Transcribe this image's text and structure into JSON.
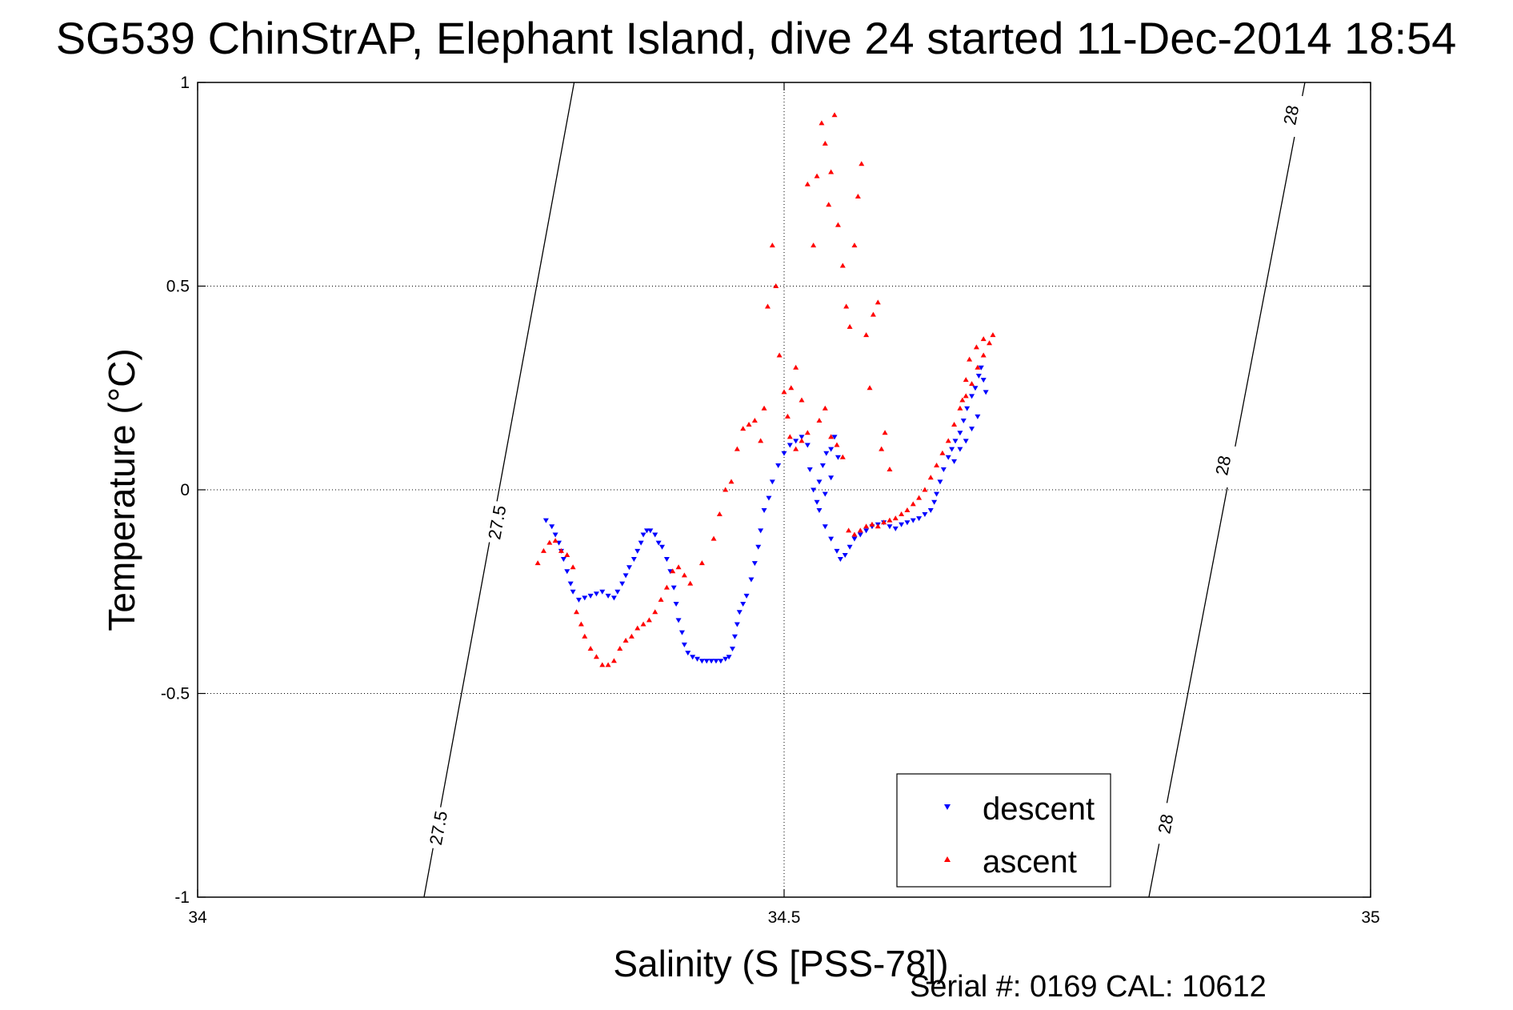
{
  "chart_data": {
    "type": "scatter",
    "title": "SG539 ChinStrAP, Elephant Island, dive 24 started 11-Dec-2014 18:54",
    "xlabel": "Salinity (S [PSS-78])",
    "ylabel": "Temperature (°C)",
    "xlim": [
      34,
      35
    ],
    "ylim": [
      -1,
      1
    ],
    "x_ticks": [
      "34",
      "34.5",
      "35"
    ],
    "x_tick_values": [
      34,
      34.5,
      35
    ],
    "y_ticks": [
      "1",
      "0.5",
      "0",
      "-0.5",
      "-1"
    ],
    "y_tick_values": [
      1,
      0.5,
      0,
      -0.5,
      -1
    ],
    "grid": true,
    "legend_position": "bottom-right",
    "footer": "Serial #: 0169 CAL: 10612",
    "contours": [
      {
        "label": "27.5",
        "points": [
          [
            34.193,
            -1.0
          ],
          [
            34.321,
            1.0
          ]
        ],
        "label_positions": [
          [
            34.205,
            -0.83
          ],
          [
            34.255,
            -0.08
          ]
        ]
      },
      {
        "label": "28",
        "points": [
          [
            34.811,
            -1.0
          ],
          [
            34.944,
            1.0
          ]
        ],
        "label_positions": [
          [
            34.825,
            -0.82
          ],
          [
            34.874,
            0.06
          ],
          [
            34.932,
            0.92
          ]
        ]
      }
    ],
    "series": [
      {
        "name": "descent",
        "color": "#0000ff",
        "marker": "triangle-down",
        "points": [
          [
            34.297,
            -0.075
          ],
          [
            34.302,
            -0.09
          ],
          [
            34.305,
            -0.11
          ],
          [
            34.308,
            -0.13
          ],
          [
            34.31,
            -0.15
          ],
          [
            34.312,
            -0.17
          ],
          [
            34.315,
            -0.2
          ],
          [
            34.318,
            -0.23
          ],
          [
            34.32,
            -0.25
          ],
          [
            34.325,
            -0.27
          ],
          [
            34.33,
            -0.265
          ],
          [
            34.335,
            -0.26
          ],
          [
            34.34,
            -0.255
          ],
          [
            34.345,
            -0.25
          ],
          [
            34.35,
            -0.26
          ],
          [
            34.355,
            -0.265
          ],
          [
            34.358,
            -0.25
          ],
          [
            34.362,
            -0.23
          ],
          [
            34.365,
            -0.21
          ],
          [
            34.368,
            -0.19
          ],
          [
            34.372,
            -0.17
          ],
          [
            34.375,
            -0.15
          ],
          [
            34.378,
            -0.13
          ],
          [
            34.38,
            -0.11
          ],
          [
            34.383,
            -0.1
          ],
          [
            34.386,
            -0.1
          ],
          [
            34.39,
            -0.11
          ],
          [
            34.393,
            -0.13
          ],
          [
            34.396,
            -0.14
          ],
          [
            34.4,
            -0.17
          ],
          [
            34.403,
            -0.2
          ],
          [
            34.406,
            -0.24
          ],
          [
            34.408,
            -0.28
          ],
          [
            34.41,
            -0.32
          ],
          [
            34.413,
            -0.35
          ],
          [
            34.415,
            -0.38
          ],
          [
            34.418,
            -0.4
          ],
          [
            34.422,
            -0.41
          ],
          [
            34.426,
            -0.415
          ],
          [
            34.43,
            -0.42
          ],
          [
            34.434,
            -0.42
          ],
          [
            34.438,
            -0.42
          ],
          [
            34.442,
            -0.42
          ],
          [
            34.446,
            -0.42
          ],
          [
            34.45,
            -0.415
          ],
          [
            34.453,
            -0.41
          ],
          [
            34.456,
            -0.39
          ],
          [
            34.458,
            -0.36
          ],
          [
            34.46,
            -0.33
          ],
          [
            34.462,
            -0.3
          ],
          [
            34.465,
            -0.28
          ],
          [
            34.468,
            -0.26
          ],
          [
            34.472,
            -0.22
          ],
          [
            34.475,
            -0.18
          ],
          [
            34.478,
            -0.14
          ],
          [
            34.48,
            -0.1
          ],
          [
            34.483,
            -0.05
          ],
          [
            34.487,
            -0.02
          ],
          [
            34.49,
            0.02
          ],
          [
            34.495,
            0.06
          ],
          [
            34.5,
            0.09
          ],
          [
            34.505,
            0.11
          ],
          [
            34.51,
            0.12
          ],
          [
            34.515,
            0.13
          ],
          [
            34.52,
            0.11
          ],
          [
            34.522,
            0.05
          ],
          [
            34.525,
            0.0
          ],
          [
            34.528,
            -0.03
          ],
          [
            34.53,
            0.02
          ],
          [
            34.533,
            0.06
          ],
          [
            34.536,
            0.09
          ],
          [
            34.54,
            0.1
          ],
          [
            34.543,
            0.13
          ],
          [
            34.546,
            0.08
          ],
          [
            34.54,
            0.03
          ],
          [
            34.535,
            -0.01
          ],
          [
            34.53,
            -0.05
          ],
          [
            34.535,
            -0.09
          ],
          [
            34.54,
            -0.12
          ],
          [
            34.545,
            -0.15
          ],
          [
            34.548,
            -0.17
          ],
          [
            34.552,
            -0.16
          ],
          [
            34.556,
            -0.14
          ],
          [
            34.56,
            -0.12
          ],
          [
            34.565,
            -0.11
          ],
          [
            34.57,
            -0.1
          ],
          [
            34.575,
            -0.09
          ],
          [
            34.58,
            -0.085
          ],
          [
            34.585,
            -0.08
          ],
          [
            34.59,
            -0.09
          ],
          [
            34.595,
            -0.095
          ],
          [
            34.6,
            -0.085
          ],
          [
            34.605,
            -0.08
          ],
          [
            34.61,
            -0.075
          ],
          [
            34.615,
            -0.07
          ],
          [
            34.62,
            -0.06
          ],
          [
            34.625,
            -0.05
          ],
          [
            34.628,
            -0.03
          ],
          [
            34.63,
            -0.01
          ],
          [
            34.633,
            0.02
          ],
          [
            34.636,
            0.05
          ],
          [
            34.64,
            0.08
          ],
          [
            34.643,
            0.1
          ],
          [
            34.646,
            0.12
          ],
          [
            34.65,
            0.14
          ],
          [
            34.653,
            0.17
          ],
          [
            34.656,
            0.2
          ],
          [
            34.66,
            0.23
          ],
          [
            34.663,
            0.25
          ],
          [
            34.666,
            0.28
          ],
          [
            34.668,
            0.3
          ],
          [
            34.67,
            0.27
          ],
          [
            34.672,
            0.24
          ],
          [
            34.665,
            0.18
          ],
          [
            34.66,
            0.15
          ],
          [
            34.655,
            0.12
          ],
          [
            34.65,
            0.1
          ],
          [
            34.645,
            0.07
          ]
        ]
      },
      {
        "name": "ascent",
        "color": "#ff0000",
        "marker": "triangle-up",
        "points": [
          [
            34.29,
            -0.18
          ],
          [
            34.295,
            -0.15
          ],
          [
            34.3,
            -0.13
          ],
          [
            34.305,
            -0.125
          ],
          [
            34.31,
            -0.15
          ],
          [
            34.315,
            -0.16
          ],
          [
            34.32,
            -0.19
          ],
          [
            34.323,
            -0.3
          ],
          [
            34.327,
            -0.33
          ],
          [
            34.33,
            -0.36
          ],
          [
            34.335,
            -0.39
          ],
          [
            34.34,
            -0.41
          ],
          [
            34.345,
            -0.43
          ],
          [
            34.35,
            -0.43
          ],
          [
            34.355,
            -0.42
          ],
          [
            34.36,
            -0.39
          ],
          [
            34.365,
            -0.37
          ],
          [
            34.37,
            -0.36
          ],
          [
            34.375,
            -0.34
          ],
          [
            34.38,
            -0.33
          ],
          [
            34.385,
            -0.32
          ],
          [
            34.39,
            -0.3
          ],
          [
            34.395,
            -0.27
          ],
          [
            34.4,
            -0.24
          ],
          [
            34.405,
            -0.2
          ],
          [
            34.41,
            -0.19
          ],
          [
            34.415,
            -0.21
          ],
          [
            34.42,
            -0.23
          ],
          [
            34.43,
            -0.18
          ],
          [
            34.44,
            -0.12
          ],
          [
            34.445,
            -0.06
          ],
          [
            34.45,
            0.0
          ],
          [
            34.455,
            0.02
          ],
          [
            34.46,
            0.1
          ],
          [
            34.465,
            0.15
          ],
          [
            34.47,
            0.16
          ],
          [
            34.475,
            0.17
          ],
          [
            34.48,
            0.12
          ],
          [
            34.483,
            0.2
          ],
          [
            34.486,
            0.45
          ],
          [
            34.49,
            0.6
          ],
          [
            34.493,
            0.5
          ],
          [
            34.496,
            0.33
          ],
          [
            34.5,
            0.24
          ],
          [
            34.503,
            0.18
          ],
          [
            34.506,
            0.25
          ],
          [
            34.51,
            0.3
          ],
          [
            34.515,
            0.22
          ],
          [
            34.52,
            0.75
          ],
          [
            34.525,
            0.6
          ],
          [
            34.528,
            0.77
          ],
          [
            34.532,
            0.9
          ],
          [
            34.535,
            0.85
          ],
          [
            34.538,
            0.7
          ],
          [
            34.54,
            0.78
          ],
          [
            34.543,
            0.92
          ],
          [
            34.546,
            0.65
          ],
          [
            34.55,
            0.55
          ],
          [
            34.553,
            0.45
          ],
          [
            34.556,
            0.4
          ],
          [
            34.56,
            0.6
          ],
          [
            34.563,
            0.72
          ],
          [
            34.566,
            0.8
          ],
          [
            34.57,
            0.38
          ],
          [
            34.573,
            0.25
          ],
          [
            34.576,
            0.43
          ],
          [
            34.58,
            0.46
          ],
          [
            34.583,
            0.1
          ],
          [
            34.586,
            0.14
          ],
          [
            34.59,
            0.05
          ],
          [
            34.52,
            0.14
          ],
          [
            34.515,
            0.12
          ],
          [
            34.51,
            0.1
          ],
          [
            34.505,
            0.13
          ],
          [
            34.53,
            0.17
          ],
          [
            34.535,
            0.2
          ],
          [
            34.54,
            0.13
          ],
          [
            34.545,
            0.11
          ],
          [
            34.55,
            0.08
          ],
          [
            34.555,
            -0.1
          ],
          [
            34.56,
            -0.11
          ],
          [
            34.565,
            -0.1
          ],
          [
            34.57,
            -0.09
          ],
          [
            34.575,
            -0.085
          ],
          [
            34.58,
            -0.09
          ],
          [
            34.585,
            -0.08
          ],
          [
            34.59,
            -0.075
          ],
          [
            34.595,
            -0.07
          ],
          [
            34.6,
            -0.06
          ],
          [
            34.605,
            -0.05
          ],
          [
            34.61,
            -0.035
          ],
          [
            34.615,
            -0.02
          ],
          [
            34.62,
            0.0
          ],
          [
            34.625,
            0.03
          ],
          [
            34.63,
            0.06
          ],
          [
            34.635,
            0.09
          ],
          [
            34.64,
            0.12
          ],
          [
            34.645,
            0.16
          ],
          [
            34.65,
            0.2
          ],
          [
            34.655,
            0.23
          ],
          [
            34.66,
            0.26
          ],
          [
            34.665,
            0.3
          ],
          [
            34.67,
            0.33
          ],
          [
            34.675,
            0.36
          ],
          [
            34.678,
            0.38
          ],
          [
            34.67,
            0.37
          ],
          [
            34.664,
            0.35
          ],
          [
            34.658,
            0.32
          ],
          [
            34.655,
            0.27
          ],
          [
            34.652,
            0.22
          ]
        ]
      }
    ]
  }
}
